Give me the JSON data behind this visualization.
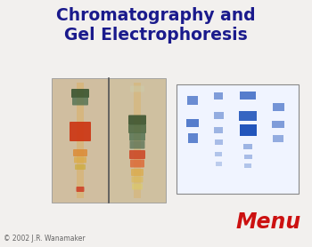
{
  "bg_color": "#f2f0ee",
  "title_line1": "Chromatography and",
  "title_line2": "Gel Electrophoresis",
  "title_color": "#1a1a8c",
  "title_fontsize": 13.5,
  "menu_text": "Menu",
  "menu_color": "#cc1111",
  "menu_fontsize": 17,
  "copyright_text": "© 2002 J.R. Wanamaker",
  "copyright_color": "#666666",
  "copyright_fontsize": 5.5
}
